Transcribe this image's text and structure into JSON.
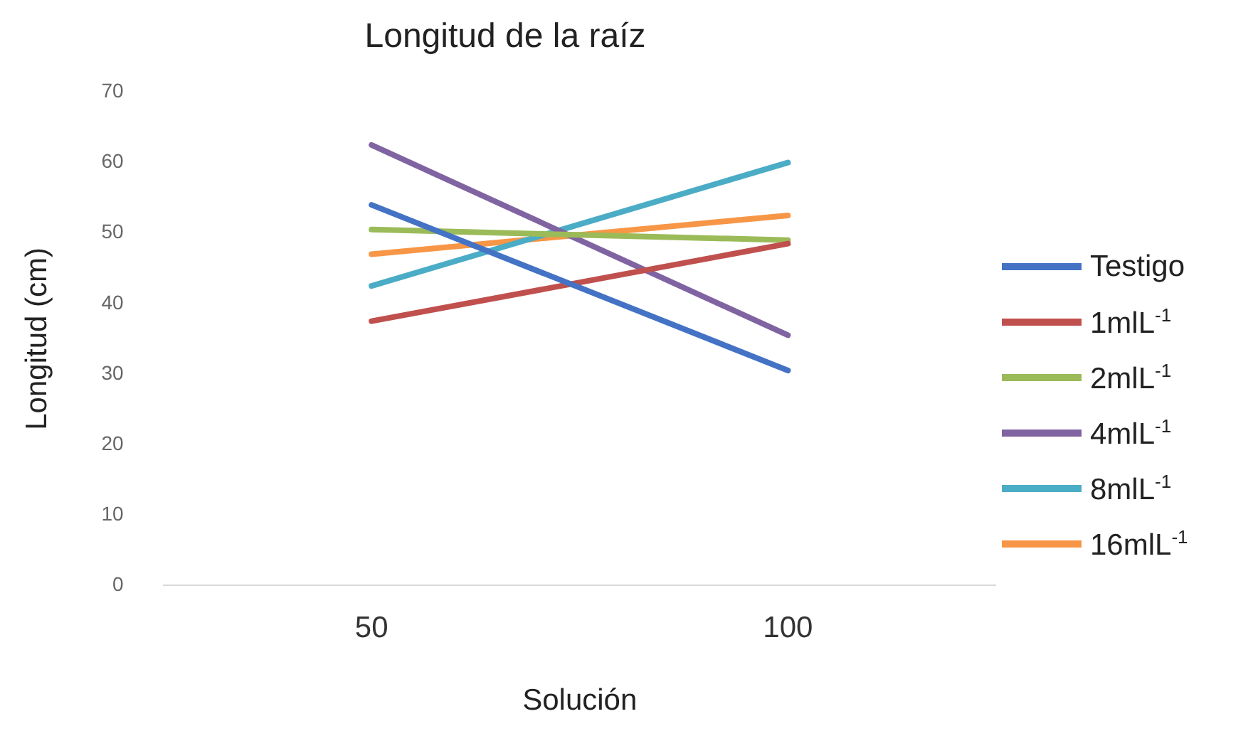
{
  "chart_data": {
    "type": "line",
    "title": "Longitud de la raíz",
    "xlabel": "Solución",
    "ylabel": "Longitud (cm)",
    "categories": [
      "50",
      "100"
    ],
    "ylim": [
      0,
      70
    ],
    "yticks": [
      0,
      10,
      20,
      30,
      40,
      50,
      60,
      70
    ],
    "grid": false,
    "legend": "right",
    "marker": "none",
    "line_style": "solid",
    "series": [
      {
        "name": "Testigo",
        "color": "#4472c4",
        "values": [
          54,
          30.5
        ]
      },
      {
        "name": "1mlL$^{-1}$",
        "color": "#c0504d",
        "values": [
          37.5,
          48.5
        ]
      },
      {
        "name": "2mlL$^{-1}$",
        "color": "#9bbb59",
        "values": [
          50.5,
          49
        ]
      },
      {
        "name": "4mlL$^{-1}$",
        "color": "#8064a2",
        "values": [
          62.5,
          35.5
        ]
      },
      {
        "name": "8mlL$^{-1}$",
        "color": "#4bacc6",
        "values": [
          42.5,
          60
        ]
      },
      {
        "name": "16mlL$^{-1}$",
        "color": "#f79646",
        "values": [
          47,
          52.5
        ]
      }
    ]
  }
}
